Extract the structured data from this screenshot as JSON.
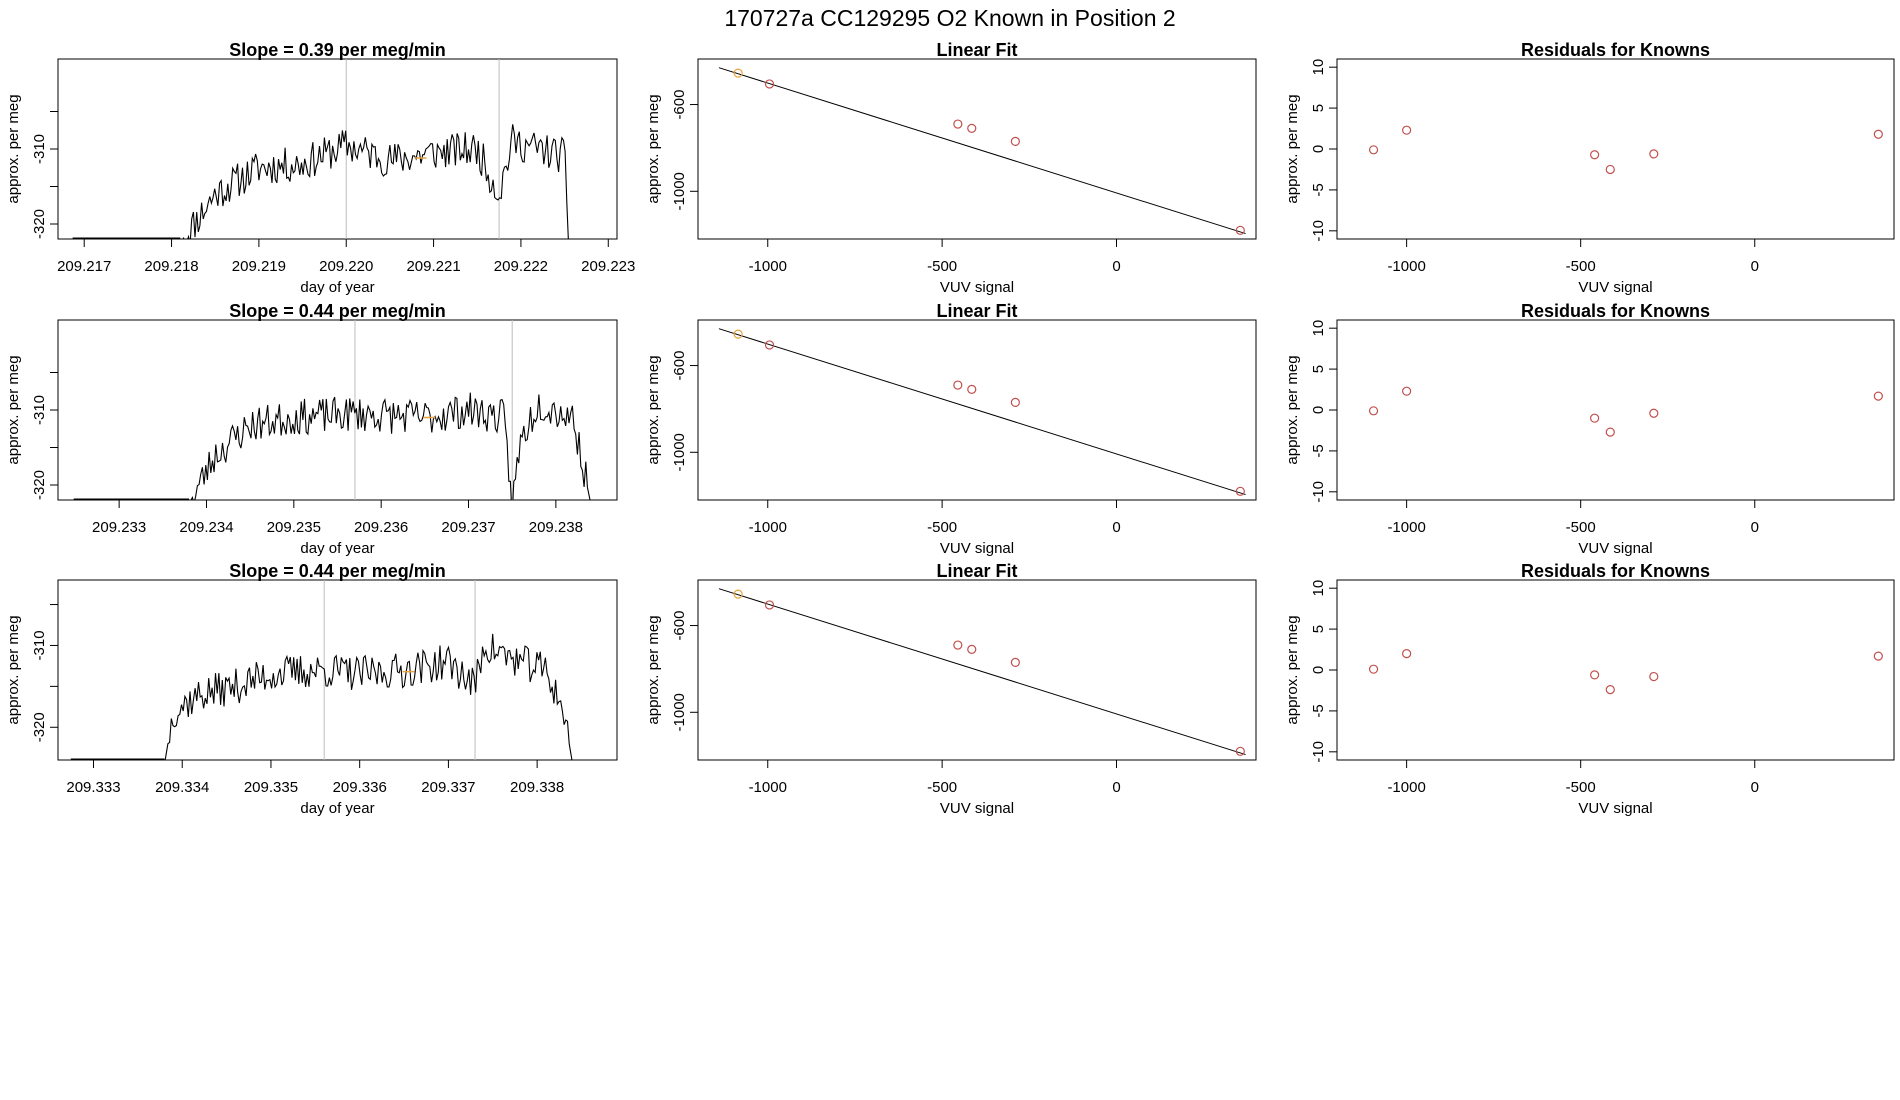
{
  "figure": {
    "title": "170727a     CC129295   O2 Known in Position  2",
    "colors": {
      "line": "#000000",
      "box": "#000000",
      "point": "#c0504d",
      "highlight": "#e8a33c",
      "vline": "#bdbdbd"
    }
  },
  "chart_data": [
    {
      "type": "line",
      "row": 0,
      "title": "Slope =  0.39  per meg/min",
      "xlabel": "day of year",
      "ylabel": "approx. per meg",
      "xlim": [
        209.2167,
        209.2231
      ],
      "ylim": [
        -322,
        -298
      ],
      "xticks": [
        209.217,
        209.218,
        209.219,
        209.22,
        209.221,
        209.222,
        209.223
      ],
      "xtick_labels": [
        "209.217",
        "209.218",
        "209.219",
        "209.220",
        "209.221",
        "209.222",
        "209.223"
      ],
      "yticks": [
        -320,
        -310
      ],
      "ytick_labels": [
        "-320",
        "-310"
      ],
      "vlines": [
        209.22,
        209.22175
      ],
      "x_start": 209.2181,
      "x_end": 209.2226,
      "seed": 11,
      "amp": 2.4,
      "y_knots": [
        [
          209.2181,
          -322.5
        ],
        [
          209.2185,
          -316
        ],
        [
          209.219,
          -312.5
        ],
        [
          209.2195,
          -312
        ],
        [
          209.22,
          -309.5
        ],
        [
          209.2205,
          -311.5
        ],
        [
          209.221,
          -310.5
        ],
        [
          209.2215,
          -310
        ],
        [
          209.22175,
          -316
        ],
        [
          209.2219,
          -309
        ],
        [
          209.2225,
          -311
        ],
        [
          209.22255,
          -322.5
        ]
      ],
      "highlight": [
        209.22085,
        -311.2
      ]
    },
    {
      "type": "scatter_fit",
      "row": 0,
      "title": "Linear Fit",
      "xlabel": "VUV signal",
      "ylabel": "approx. per meg",
      "xlim": [
        -1200,
        400
      ],
      "ylim": [
        -1220,
        -390
      ],
      "xticks": [
        -1000,
        -500,
        0
      ],
      "xtick_labels": [
        "-1000",
        "-500",
        "0"
      ],
      "yticks": [
        -1000,
        -600
      ],
      "ytick_labels": [
        "-1000",
        "-600"
      ],
      "fit_line": [
        [
          -1140,
          -430
        ],
        [
          370,
          -1195
        ]
      ],
      "points": [
        {
          "x": -1085,
          "y": -455,
          "highlight": true
        },
        {
          "x": -995,
          "y": -505
        },
        {
          "x": -455,
          "y": -690
        },
        {
          "x": -415,
          "y": -710
        },
        {
          "x": -290,
          "y": -770
        },
        {
          "x": 355,
          "y": -1180
        }
      ]
    },
    {
      "type": "scatter",
      "row": 0,
      "title": "Residuals for Knowns",
      "xlabel": "VUV signal",
      "ylabel": "approx. per meg",
      "xlim": [
        -1200,
        400
      ],
      "ylim": [
        -11,
        11
      ],
      "xticks": [
        -1000,
        -500,
        0
      ],
      "xtick_labels": [
        "-1000",
        "-500",
        "0"
      ],
      "yticks": [
        -10,
        -5,
        0,
        5,
        10
      ],
      "ytick_labels": [
        "-10",
        "-5",
        "0",
        "5",
        "10"
      ],
      "points": [
        {
          "x": -1095,
          "y": -0.1
        },
        {
          "x": -1000,
          "y": 2.3
        },
        {
          "x": -460,
          "y": -0.7
        },
        {
          "x": -415,
          "y": -2.5
        },
        {
          "x": -290,
          "y": -0.6
        },
        {
          "x": 355,
          "y": 1.8
        }
      ]
    },
    {
      "type": "line",
      "row": 1,
      "title": "Slope =  0.44  per meg/min",
      "xlabel": "day of year",
      "ylabel": "approx. per meg",
      "xlim": [
        209.2323,
        209.2387
      ],
      "ylim": [
        -322,
        -298
      ],
      "xticks": [
        209.233,
        209.234,
        209.235,
        209.236,
        209.237,
        209.238
      ],
      "xtick_labels": [
        "209.233",
        "209.234",
        "209.235",
        "209.236",
        "209.237",
        "209.238"
      ],
      "yticks": [
        -320,
        -310
      ],
      "ytick_labels": [
        "-320",
        "-310"
      ],
      "vlines": [
        209.2357,
        209.2375
      ],
      "x_start": 209.2338,
      "x_end": 209.2384,
      "seed": 23,
      "amp": 2.4,
      "y_knots": [
        [
          209.2338,
          -322.5
        ],
        [
          209.2341,
          -316
        ],
        [
          209.2345,
          -312
        ],
        [
          209.235,
          -311
        ],
        [
          209.2357,
          -310.5
        ],
        [
          209.2365,
          -311
        ],
        [
          209.237,
          -310
        ],
        [
          209.2374,
          -311
        ],
        [
          209.2375,
          -322.5
        ],
        [
          209.2376,
          -314
        ],
        [
          209.2378,
          -309
        ],
        [
          209.2382,
          -311
        ],
        [
          209.2384,
          -322.5
        ]
      ],
      "highlight": [
        209.23655,
        -311.0
      ]
    },
    {
      "type": "scatter_fit",
      "row": 1,
      "title": "Linear Fit",
      "xlabel": "VUV signal",
      "ylabel": "approx. per meg",
      "xlim": [
        -1200,
        400
      ],
      "ylim": [
        -1220,
        -390
      ],
      "xticks": [
        -1000,
        -500,
        0
      ],
      "xtick_labels": [
        "-1000",
        "-500",
        "0"
      ],
      "yticks": [
        -1000,
        -600
      ],
      "ytick_labels": [
        "-1000",
        "-600"
      ],
      "fit_line": [
        [
          -1140,
          -430
        ],
        [
          370,
          -1195
        ]
      ],
      "points": [
        {
          "x": -1085,
          "y": -455,
          "highlight": true
        },
        {
          "x": -995,
          "y": -505
        },
        {
          "x": -455,
          "y": -690
        },
        {
          "x": -415,
          "y": -710
        },
        {
          "x": -290,
          "y": -770
        },
        {
          "x": 355,
          "y": -1180
        }
      ]
    },
    {
      "type": "scatter",
      "row": 1,
      "title": "Residuals for Knowns",
      "xlabel": "VUV signal",
      "ylabel": "approx. per meg",
      "xlim": [
        -1200,
        400
      ],
      "ylim": [
        -11,
        11
      ],
      "xticks": [
        -1000,
        -500,
        0
      ],
      "xtick_labels": [
        "-1000",
        "-500",
        "0"
      ],
      "yticks": [
        -10,
        -5,
        0,
        5,
        10
      ],
      "ytick_labels": [
        "-10",
        "-5",
        "0",
        "5",
        "10"
      ],
      "points": [
        {
          "x": -1095,
          "y": -0.1
        },
        {
          "x": -1000,
          "y": 2.3
        },
        {
          "x": -460,
          "y": -1.0
        },
        {
          "x": -415,
          "y": -2.7
        },
        {
          "x": -290,
          "y": -0.4
        },
        {
          "x": 355,
          "y": 1.7
        }
      ]
    },
    {
      "type": "line",
      "row": 2,
      "title": "Slope =  0.44  per meg/min",
      "xlabel": "day of year",
      "ylabel": "approx. per meg",
      "xlim": [
        209.3326,
        209.3389
      ],
      "ylim": [
        -324,
        -302
      ],
      "xticks": [
        209.333,
        209.334,
        209.335,
        209.336,
        209.337,
        209.338
      ],
      "xtick_labels": [
        "209.333",
        "209.334",
        "209.335",
        "209.336",
        "209.337",
        "209.338"
      ],
      "yticks": [
        -320,
        -310
      ],
      "ytick_labels": [
        "-320",
        "-310"
      ],
      "vlines": [
        209.3356,
        209.3373
      ],
      "x_start": 209.3338,
      "x_end": 209.3384,
      "seed": 37,
      "amp": 2.2,
      "y_knots": [
        [
          209.3338,
          -324.5
        ],
        [
          209.3339,
          -318
        ],
        [
          209.3342,
          -316
        ],
        [
          209.3346,
          -315
        ],
        [
          209.335,
          -313.5
        ],
        [
          209.3356,
          -313
        ],
        [
          209.336,
          -313.5
        ],
        [
          209.3365,
          -313
        ],
        [
          209.337,
          -312
        ],
        [
          209.3373,
          -315
        ],
        [
          209.3374,
          -310
        ],
        [
          209.3378,
          -312
        ],
        [
          209.3381,
          -313
        ],
        [
          209.3383,
          -318
        ],
        [
          209.3384,
          -324.5
        ]
      ],
      "highlight": [
        209.33655,
        -313.2
      ]
    },
    {
      "type": "scatter_fit",
      "row": 2,
      "title": "Linear Fit",
      "xlabel": "VUV signal",
      "ylabel": "approx. per meg",
      "xlim": [
        -1200,
        400
      ],
      "ylim": [
        -1220,
        -390
      ],
      "xticks": [
        -1000,
        -500,
        0
      ],
      "xtick_labels": [
        "-1000",
        "-500",
        "0"
      ],
      "yticks": [
        -1000,
        -600
      ],
      "ytick_labels": [
        "-1000",
        "-600"
      ],
      "fit_line": [
        [
          -1140,
          -430
        ],
        [
          370,
          -1195
        ]
      ],
      "points": [
        {
          "x": -1085,
          "y": -455,
          "highlight": true
        },
        {
          "x": -995,
          "y": -505
        },
        {
          "x": -455,
          "y": -690
        },
        {
          "x": -415,
          "y": -710
        },
        {
          "x": -290,
          "y": -770
        },
        {
          "x": 355,
          "y": -1180
        }
      ]
    },
    {
      "type": "scatter",
      "row": 2,
      "title": "Residuals for Knowns",
      "xlabel": "VUV signal",
      "ylabel": "approx. per meg",
      "xlim": [
        -1200,
        400
      ],
      "ylim": [
        -11,
        11
      ],
      "xticks": [
        -1000,
        -500,
        0
      ],
      "xtick_labels": [
        "-1000",
        "-500",
        "0"
      ],
      "yticks": [
        -10,
        -5,
        0,
        5,
        10
      ],
      "ytick_labels": [
        "-10",
        "-5",
        "0",
        "5",
        "10"
      ],
      "points": [
        {
          "x": -1095,
          "y": 0.1
        },
        {
          "x": -1000,
          "y": 2.0
        },
        {
          "x": -460,
          "y": -0.6
        },
        {
          "x": -415,
          "y": -2.4
        },
        {
          "x": -290,
          "y": -0.8
        },
        {
          "x": 355,
          "y": 1.7
        }
      ]
    }
  ]
}
